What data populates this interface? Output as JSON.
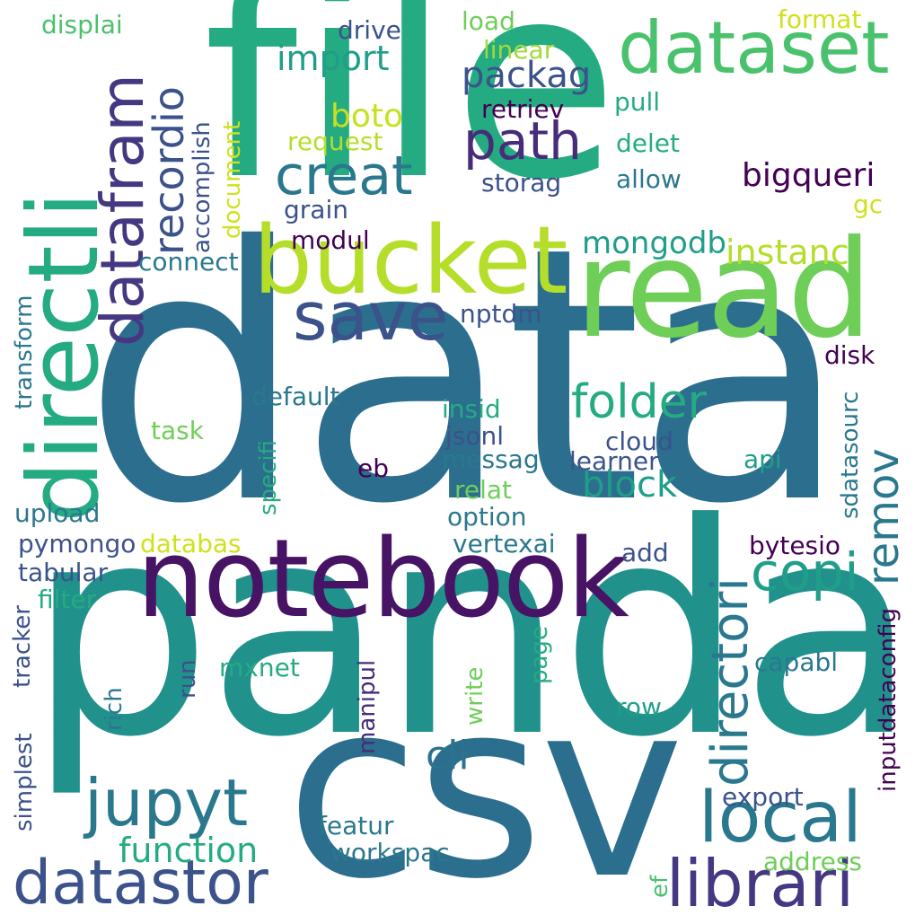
{
  "words": [
    {
      "text": "data",
      "color": "#2c6e8e"
    },
    {
      "text": "panda",
      "color": "#21918c"
    },
    {
      "text": "file",
      "color": "#25ab82"
    },
    {
      "text": "csv",
      "color": "#2c6e8e"
    },
    {
      "text": "notebook",
      "color": "#471365"
    },
    {
      "text": "read",
      "color": "#6ece58"
    },
    {
      "text": "bucket",
      "color": "#b5de2b"
    },
    {
      "text": "directli",
      "color": "#25ab82"
    },
    {
      "text": "dataset",
      "color": "#4ac16d"
    },
    {
      "text": "datafram",
      "color": "#453781"
    },
    {
      "text": "save",
      "color": "#3b528b"
    },
    {
      "text": "local",
      "color": "#2a788e"
    },
    {
      "text": "librari",
      "color": "#453781"
    },
    {
      "text": "datastor",
      "color": "#3b528b"
    },
    {
      "text": "jupyt",
      "color": "#2a788e"
    },
    {
      "text": "recordio",
      "color": "#3b528b"
    },
    {
      "text": "creat",
      "color": "#2a788e"
    },
    {
      "text": "path",
      "color": "#472c7a"
    },
    {
      "text": "copi",
      "color": "#1f9e89"
    },
    {
      "text": "folder",
      "color": "#25ab82"
    },
    {
      "text": "directori",
      "color": "#2a788e"
    },
    {
      "text": "remov",
      "color": "#2a788e"
    },
    {
      "text": "function",
      "color": "#25ab82"
    },
    {
      "text": "block",
      "color": "#1f9e89"
    },
    {
      "text": "mongodb",
      "color": "#1f9e89"
    },
    {
      "text": "instanc",
      "color": "#b5de2b"
    },
    {
      "text": "import",
      "color": "#1f9e89"
    },
    {
      "text": "packag",
      "color": "#3b528b"
    },
    {
      "text": "boto",
      "color": "#c8e020"
    },
    {
      "text": "bigqueri",
      "color": "#440154"
    },
    {
      "text": "cli",
      "color": "#2c728e"
    },
    {
      "text": "displai",
      "color": "#4ac16d"
    },
    {
      "text": "drive",
      "color": "#3b528b"
    },
    {
      "text": "load",
      "color": "#6ece58"
    },
    {
      "text": "linear",
      "color": "#a2da37"
    },
    {
      "text": "format",
      "color": "#d0e11c"
    },
    {
      "text": "pull",
      "color": "#25ab82"
    },
    {
      "text": "retriev",
      "color": "#440154"
    },
    {
      "text": "request",
      "color": "#b5de2b"
    },
    {
      "text": "delet",
      "color": "#25ab82"
    },
    {
      "text": "allow",
      "color": "#2a788e"
    },
    {
      "text": "storag",
      "color": "#3b528b"
    },
    {
      "text": "gc",
      "color": "#d0e11c"
    },
    {
      "text": "grain",
      "color": "#3b528b"
    },
    {
      "text": "modul",
      "color": "#440154"
    },
    {
      "text": "connect",
      "color": "#2a788e"
    },
    {
      "text": "accomplish",
      "color": "#3b528b"
    },
    {
      "text": "document",
      "color": "#d0e11c"
    },
    {
      "text": "transform",
      "color": "#2a788e"
    },
    {
      "text": "nptdm",
      "color": "#3b528b"
    },
    {
      "text": "disk",
      "color": "#440154"
    },
    {
      "text": "default",
      "color": "#2a788e"
    },
    {
      "text": "insid",
      "color": "#25ab82"
    },
    {
      "text": "jsonl",
      "color": "#3b528b"
    },
    {
      "text": "messag",
      "color": "#2a788e"
    },
    {
      "text": "cloud",
      "color": "#3b528b"
    },
    {
      "text": "learner",
      "color": "#3b528b"
    },
    {
      "text": "api",
      "color": "#1f9e89"
    },
    {
      "text": "task",
      "color": "#6ece58"
    },
    {
      "text": "eb",
      "color": "#440154"
    },
    {
      "text": "relat",
      "color": "#6ece58"
    },
    {
      "text": "option",
      "color": "#2a788e"
    },
    {
      "text": "sdatasourc",
      "color": "#2a788e"
    },
    {
      "text": "specifi",
      "color": "#25ab82"
    },
    {
      "text": "upload",
      "color": "#2a788e"
    },
    {
      "text": "pymongo",
      "color": "#3b528b"
    },
    {
      "text": "databas",
      "color": "#d0e11c"
    },
    {
      "text": "vertexai",
      "color": "#2a788e"
    },
    {
      "text": "bytesio",
      "color": "#440154"
    },
    {
      "text": "add",
      "color": "#3b528b"
    },
    {
      "text": "tabular",
      "color": "#3b528b"
    },
    {
      "text": "filter",
      "color": "#25ab82"
    },
    {
      "text": "tracker",
      "color": "#3b528b"
    },
    {
      "text": "inputdataconfig",
      "color": "#440154"
    },
    {
      "text": "mxnet",
      "color": "#25ab82"
    },
    {
      "text": "capabl",
      "color": "#2a788e"
    },
    {
      "text": "run",
      "color": "#3b528b"
    },
    {
      "text": "page",
      "color": "#25ab82"
    },
    {
      "text": "manipul",
      "color": "#472c7a"
    },
    {
      "text": "write",
      "color": "#6ece58"
    },
    {
      "text": "rich",
      "color": "#2a788e"
    },
    {
      "text": "row",
      "color": "#1f9e89"
    },
    {
      "text": "simplest",
      "color": "#3b528b"
    },
    {
      "text": "export",
      "color": "#3b528b"
    },
    {
      "text": "featur",
      "color": "#2a788e"
    },
    {
      "text": "workspac",
      "color": "#2a788e"
    },
    {
      "text": "address",
      "color": "#6ece58"
    },
    {
      "text": "ef",
      "color": "#4ac16d"
    }
  ]
}
